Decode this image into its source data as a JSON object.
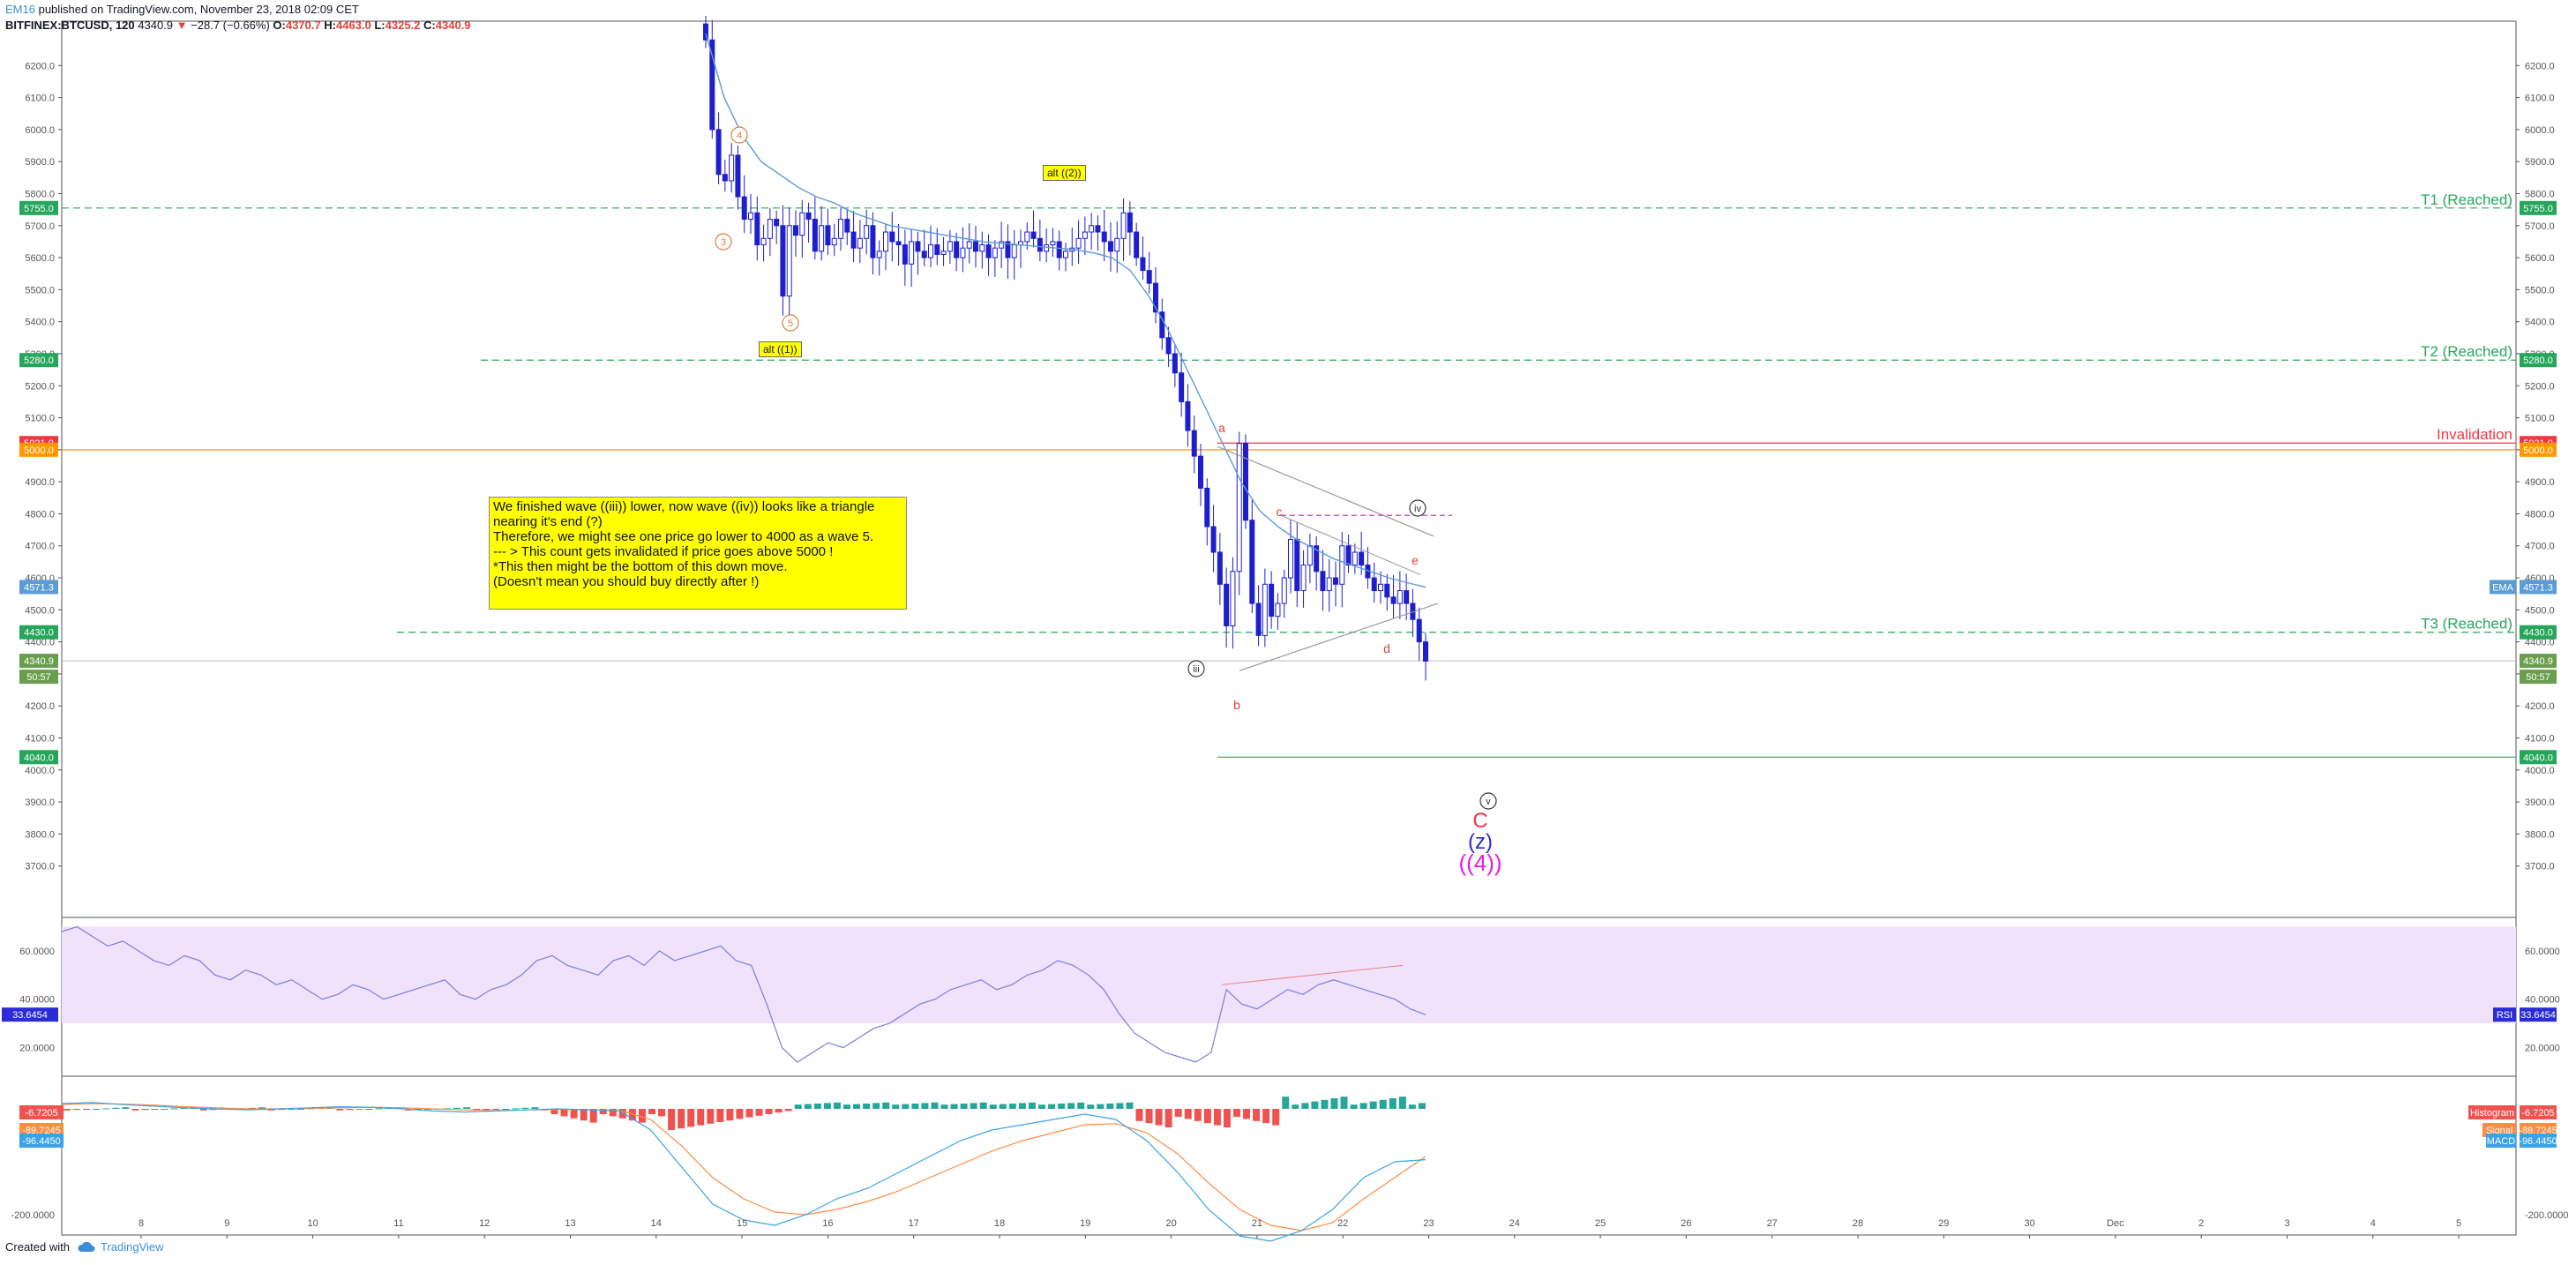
{
  "header": {
    "author": "EM16",
    "published": "published on TradingView.com, November 23, 2018 02:09 CET",
    "symbol": "BITFINEX:BTCUSD, 120",
    "last": "4340.9",
    "change_arrow": "▼",
    "change": "−28.7 (−0.66%)",
    "o_label": "O:",
    "o": "4370.7",
    "h_label": "H:",
    "h": "4463.0",
    "l_label": "L:",
    "l": "4325.2",
    "c_label": "C:",
    "c": "4340.9"
  },
  "footer": {
    "created_with": "Created with",
    "brand": "TradingView"
  },
  "annotations": {
    "note_lines": [
      "We finished wave ((iii)) lower, now wave ((iv)) looks like a triangle",
      "nearing it's end (?)",
      "Therefore, we might see one price go lower to 4000 as a wave 5.",
      "",
      "--- > This count gets invalidated if price goes above 5000 !",
      "",
      "*This then might be the bottom of this down move.",
      "(Doesn't mean you should buy directly after !)"
    ],
    "alt2": "alt ((2))",
    "alt1": "alt ((1))",
    "t1": "T1 (Reached)",
    "t2": "T2 (Reached)",
    "t3": "T3 (Reached)",
    "invalidation": "Invalidation",
    "wave_a": "a",
    "wave_b": "b",
    "wave_c": "c",
    "wave_d": "d",
    "wave_e": "e",
    "wave_iii": "iii",
    "wave_iv": "iv",
    "wave_v": "v",
    "wave_3": "3",
    "wave_4": "4",
    "wave_5": "5",
    "big_c": "C",
    "big_z": "(z)",
    "big_4": "((4))"
  },
  "price_badges": {
    "left": [
      {
        "value": "5755.0",
        "color": "#26a65b"
      },
      {
        "value": "5280.0",
        "color": "#26a65b"
      },
      {
        "value": "5021.0",
        "color": "#f23645"
      },
      {
        "value": "5000.0",
        "color": "#ff9800"
      },
      {
        "value": "4571.3",
        "color": "#5b9cd6"
      },
      {
        "value": "4430.0",
        "color": "#26a65b"
      },
      {
        "value": "4340.9",
        "color": "#6a9e4f"
      },
      {
        "value": "50:57",
        "color": "#6a9e4f"
      },
      {
        "value": "4040.0",
        "color": "#26a65b"
      }
    ],
    "ema_label": "EMA",
    "rsi_label": "RSI",
    "rsi_value": "33.6454",
    "hist_label": "Histogram",
    "hist_value": "-6.7205",
    "signal_label": "Signal",
    "signal_value": "-89.7245",
    "macd_label": "MACD",
    "macd_value": "-96.4450"
  },
  "colors": {
    "candle": "#1e1ecc",
    "ema": "#5b9cd6",
    "target_line": "#26a65b",
    "invalidation": "#f23645",
    "level5000": "#ff9800",
    "rsi": "#7e7ae0",
    "rsi_band": "#f0e2fb",
    "macd": "#3aa3e8",
    "signal": "#ff8c42",
    "hist_pos": "#26a69a",
    "hist_neg": "#ef5350"
  },
  "chart_data": [
    {
      "type": "candlestick",
      "title": "BITFINEX:BTCUSD, 120",
      "x": [
        "8",
        "9",
        "10",
        "11",
        "12",
        "13",
        "14",
        "15",
        "16",
        "17",
        "18",
        "19",
        "20",
        "21",
        "22",
        "23",
        "24",
        "25",
        "26",
        "27",
        "28",
        "29",
        "30",
        "Dec",
        "2",
        "3",
        "4",
        "5"
      ],
      "ylim": [
        3600,
        6300
      ],
      "yticks": [
        "3700.0",
        "3800.0",
        "3900.0",
        "4000.0",
        "4100.0",
        "4200.0",
        "4300.0",
        "4400.0",
        "4500.0",
        "4600.0",
        "4700.0",
        "4800.0",
        "4900.0",
        "5000.0",
        "5100.0",
        "5200.0",
        "5300.0",
        "5400.0",
        "5500.0",
        "5600.0",
        "5700.0",
        "5800.0",
        "5900.0",
        "6000.0",
        "6100.0",
        "6200.0"
      ],
      "levels": [
        {
          "name": "T1 (Reached)",
          "value": 5755
        },
        {
          "name": "T2 (Reached)",
          "value": 5280
        },
        {
          "name": "Invalidation",
          "value": 5021
        },
        {
          "name": "5000",
          "value": 5000
        },
        {
          "name": "T3 (Reached)",
          "value": 4430
        },
        {
          "name": "4040",
          "value": 4040
        }
      ],
      "candles_close": [
        6280,
        6000,
        5860,
        5840,
        5920,
        5790,
        5720,
        5740,
        5640,
        5660,
        5720,
        5700,
        5480,
        5700,
        5670,
        5740,
        5720,
        5620,
        5700,
        5640,
        5660,
        5720,
        5680,
        5630,
        5660,
        5700,
        5600,
        5620,
        5680,
        5650,
        5640,
        5580,
        5650,
        5620,
        5600,
        5640,
        5610,
        5620,
        5650,
        5600,
        5630,
        5650,
        5620,
        5640,
        5600,
        5630,
        5650,
        5600,
        5640,
        5650,
        5680,
        5660,
        5620,
        5640,
        5650,
        5600,
        5620,
        5630,
        5660,
        5680,
        5700,
        5680,
        5650,
        5620,
        5660,
        5740,
        5680,
        5600,
        5560,
        5520,
        5430,
        5350,
        5300,
        5240,
        5150,
        5060,
        4980,
        4880,
        4760,
        4680,
        4580,
        4450,
        4620,
        5020,
        4780,
        4520,
        4420,
        4580,
        4480,
        4520,
        4600,
        4720,
        4560,
        4640,
        4700,
        4620,
        4560,
        4600,
        4580,
        4700,
        4640,
        4680,
        4640,
        4600,
        4560,
        4580,
        4540,
        4520,
        4560,
        4520,
        4470,
        4400,
        4340
      ],
      "ema_close": [
        6300,
        6100,
        5980,
        5900,
        5860,
        5820,
        5790,
        5770,
        5740,
        5720,
        5700,
        5690,
        5680,
        5670,
        5660,
        5650,
        5645,
        5640,
        5635,
        5630,
        5625,
        5615,
        5600,
        5560,
        5480,
        5380,
        5260,
        5140,
        5020,
        4900,
        4810,
        4760,
        4720,
        4690,
        4660,
        4640,
        4620,
        4600,
        4585,
        4571
      ]
    },
    {
      "type": "line",
      "title": "RSI",
      "ylim": [
        10,
        72
      ],
      "yticks": [
        "20.0000",
        "40.0000",
        "60.0000"
      ],
      "band": [
        30,
        70
      ],
      "last": 33.6454
    },
    {
      "type": "bar",
      "title": "MACD",
      "yticks": [
        "-200.0000"
      ],
      "histogram": -6.7205,
      "signal": -89.7245,
      "macd": -96.445
    }
  ]
}
